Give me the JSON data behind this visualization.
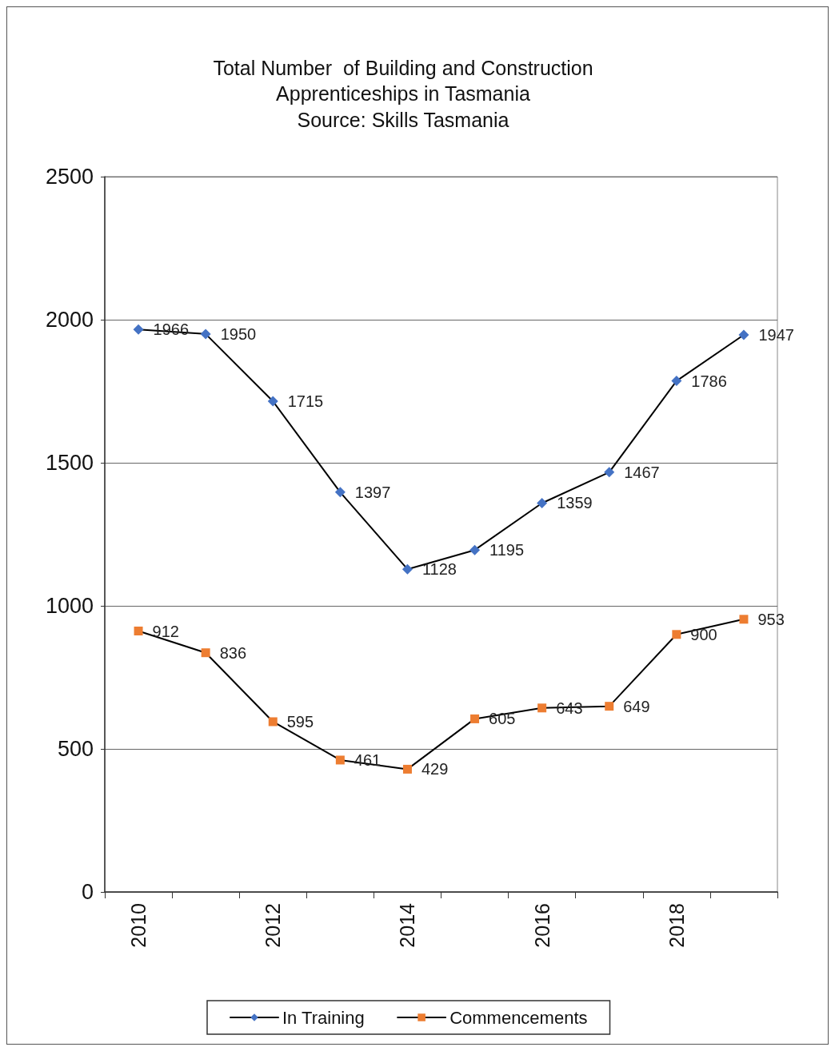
{
  "chart_data": {
    "type": "line",
    "title": "Total Number  of Building and Construction\nApprenticeships in Tasmania",
    "subtitle": "Source: Skills Tasmania",
    "categories": [
      "2010",
      null,
      "2012",
      null,
      "2014",
      null,
      "2016",
      null,
      "2018",
      null
    ],
    "series": [
      {
        "name": "In Training",
        "color": "#4472c4",
        "marker": "diamond",
        "values": [
          1966,
          1950,
          1715,
          1397,
          1128,
          1195,
          1359,
          1467,
          1786,
          1947
        ]
      },
      {
        "name": "Commencements",
        "color": "#ed7d31",
        "marker": "square",
        "values": [
          912,
          836,
          595,
          461,
          429,
          605,
          643,
          649,
          900,
          953
        ]
      }
    ],
    "ylim": [
      0,
      2500
    ],
    "yticks": [
      0,
      500,
      1000,
      1500,
      2000,
      2500
    ],
    "grid": "y",
    "legend": "bottom",
    "data_labels": true,
    "line_style": "solid"
  }
}
